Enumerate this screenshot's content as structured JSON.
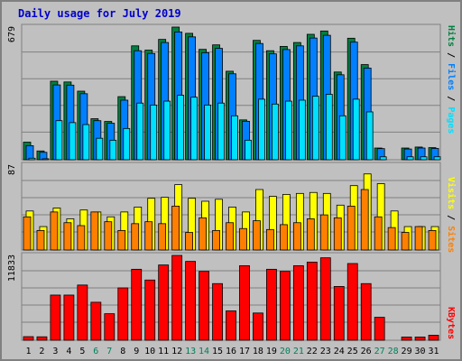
{
  "title": "Daily usage for July 2019",
  "chart_data": [
    {
      "type": "bar",
      "name": "hits-files-pages",
      "categories": [
        "1",
        "2",
        "3",
        "4",
        "5",
        "6",
        "7",
        "8",
        "9",
        "10",
        "11",
        "12",
        "13",
        "14",
        "15",
        "16",
        "17",
        "18",
        "19",
        "20",
        "21",
        "22",
        "23",
        "24",
        "25",
        "26",
        "27",
        "28",
        "29",
        "30",
        "31"
      ],
      "ymax_label": "679",
      "ylim": [
        0,
        679
      ],
      "series": [
        {
          "name": "Hits",
          "color": "#008040",
          "values": [
            90,
            45,
            402,
            398,
            351,
            210,
            196,
            323,
            583,
            561,
            616,
            679,
            647,
            565,
            588,
            453,
            204,
            611,
            558,
            580,
            600,
            642,
            659,
            449,
            622,
            487,
            60,
            0,
            60,
            65,
            62
          ]
        },
        {
          "name": "Files",
          "color": "#0080ff",
          "values": [
            72,
            38,
            383,
            382,
            338,
            200,
            187,
            305,
            558,
            544,
            600,
            654,
            629,
            548,
            570,
            440,
            197,
            595,
            542,
            564,
            583,
            623,
            637,
            435,
            602,
            469,
            57,
            0,
            55,
            60,
            58
          ]
        },
        {
          "name": "Pages",
          "color": "#00e0ff",
          "values": [
            8,
            5,
            200,
            190,
            180,
            110,
            100,
            160,
            290,
            280,
            300,
            330,
            320,
            280,
            290,
            225,
            100,
            310,
            285,
            300,
            305,
            325,
            335,
            225,
            310,
            245,
            15,
            0,
            15,
            15,
            15
          ]
        }
      ],
      "legend": [
        "Pages",
        "Files",
        "Hits"
      ]
    },
    {
      "type": "bar",
      "name": "visits-sites",
      "categories": [
        "1",
        "2",
        "3",
        "4",
        "5",
        "6",
        "7",
        "8",
        "9",
        "10",
        "11",
        "12",
        "13",
        "14",
        "15",
        "16",
        "17",
        "18",
        "19",
        "20",
        "21",
        "22",
        "23",
        "24",
        "25",
        "26",
        "27",
        "28",
        "29",
        "30",
        "31"
      ],
      "ymax_label": "87",
      "ylim": [
        0,
        87
      ],
      "series": [
        {
          "name": "Visits",
          "color": "#ffff00",
          "values": [
            40,
            24,
            43,
            32,
            41,
            39,
            34,
            39,
            44,
            53,
            54,
            67,
            53,
            50,
            52,
            44,
            39,
            62,
            55,
            57,
            58,
            59,
            58,
            46,
            66,
            78,
            68,
            40,
            24,
            24,
            24
          ]
        },
        {
          "name": "Sites",
          "color": "#ff8000",
          "values": [
            34,
            20,
            39,
            28,
            25,
            39,
            29,
            20,
            27,
            29,
            27,
            45,
            18,
            33,
            20,
            28,
            22,
            30,
            21,
            26,
            28,
            32,
            36,
            33,
            45,
            62,
            34,
            23,
            18,
            24,
            20
          ]
        }
      ],
      "legend": [
        "Sites",
        "Visits"
      ]
    },
    {
      "type": "bar",
      "name": "kbytes",
      "categories": [
        "1",
        "2",
        "3",
        "4",
        "5",
        "6",
        "7",
        "8",
        "9",
        "10",
        "11",
        "12",
        "13",
        "14",
        "15",
        "16",
        "17",
        "18",
        "19",
        "20",
        "21",
        "22",
        "23",
        "24",
        "25",
        "26",
        "27",
        "28",
        "29",
        "30",
        "31"
      ],
      "ymax_label": "11833",
      "ylim": [
        0,
        11833
      ],
      "series": [
        {
          "name": "KBytes",
          "color": "#ff0000",
          "values": [
            500,
            480,
            6300,
            6300,
            7700,
            5300,
            3700,
            7300,
            9900,
            8400,
            10500,
            12000,
            11000,
            9600,
            7900,
            4100,
            10400,
            3800,
            9900,
            9600,
            10400,
            10900,
            11500,
            7500,
            10700,
            7900,
            3200,
            0,
            450,
            450,
            700
          ]
        }
      ],
      "legend": [
        "KBytes"
      ]
    }
  ],
  "legend_colors": {
    "Pages": "#00e0ff",
    "Files": "#0080ff",
    "Hits": "#008040",
    "Sites": "#ff8000",
    "Visits": "#ffff00",
    "KBytes": "#ff0000"
  },
  "weekend_days": [
    "6",
    "7",
    "13",
    "14",
    "20",
    "21",
    "27",
    "28"
  ],
  "colors": {
    "background": "#c0c0c0",
    "plot_bg": "#c0c0c0",
    "grid": "#808080",
    "title": "#0000cc",
    "weekday_label": "#000000",
    "weekend_label": "#00805a"
  }
}
